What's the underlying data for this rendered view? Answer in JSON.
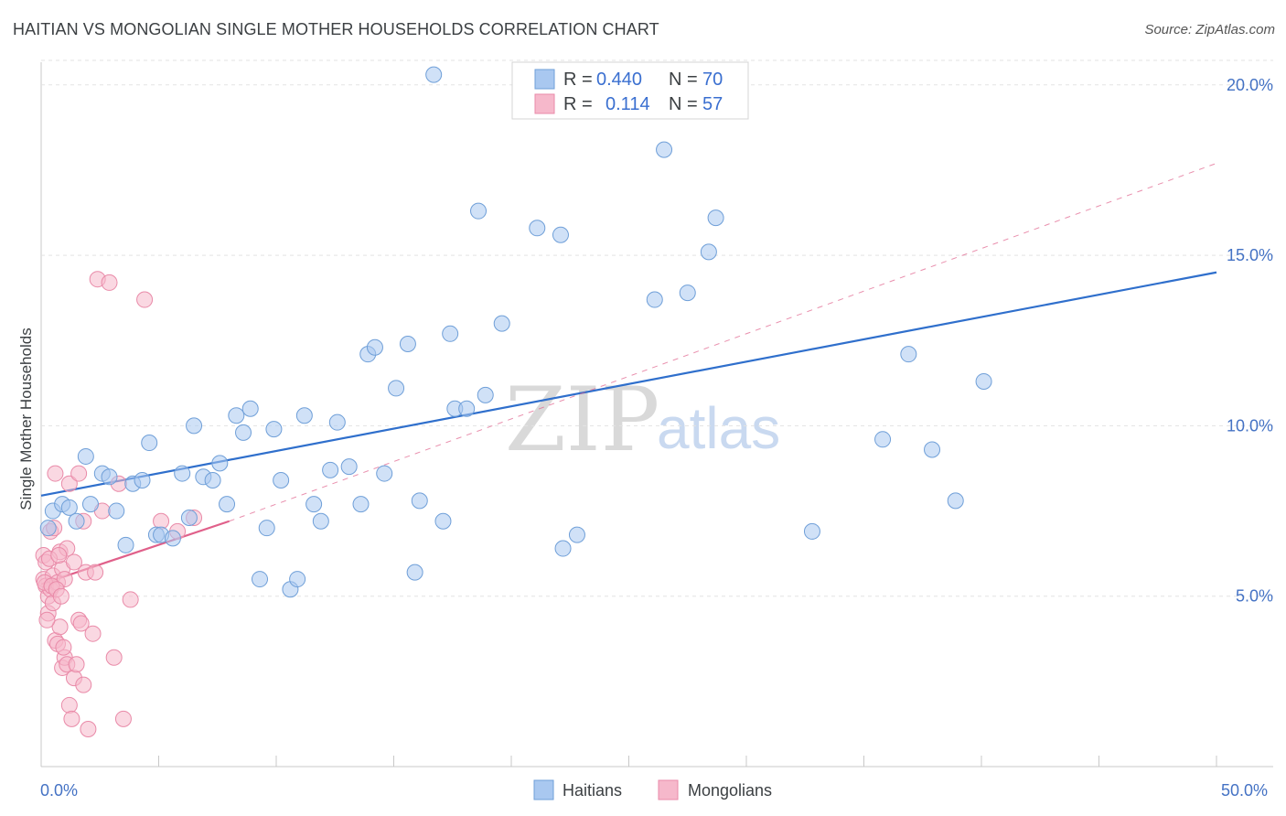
{
  "header": {
    "title": "HAITIAN VS MONGOLIAN SINGLE MOTHER HOUSEHOLDS CORRELATION CHART",
    "source": "Source: ZipAtlas.com"
  },
  "legend": {
    "rows": [
      {
        "r_label": "R =",
        "r_value": "0.440",
        "n_label": "N =",
        "n_value": "70",
        "color": "#a9c8f0"
      },
      {
        "r_label": "R =",
        "r_value": "0.114",
        "n_label": "N =",
        "n_value": "57",
        "color": "#f6b8cb"
      }
    ]
  },
  "bottom_legend": {
    "haitians": "Haitians",
    "mongolians": "Mongolians"
  },
  "watermark": {
    "zip": "ZIP",
    "atlas": "atlas"
  },
  "colors": {
    "blue_fill": "#a9c8f0",
    "blue_stroke": "#6f9fd8",
    "blue_line": "#2f6fcc",
    "pink_fill": "#f6b8cb",
    "pink_stroke": "#e98aa8",
    "pink_line": "#e0608a"
  },
  "chart_data": {
    "type": "scatter",
    "title": "HAITIAN VS MONGOLIAN SINGLE MOTHER HOUSEHOLDS CORRELATION CHART",
    "xlabel": "",
    "ylabel": "Single Mother Households",
    "xlim": [
      0,
      50
    ],
    "ylim": [
      0,
      20.8
    ],
    "x_tick_labels": [
      "0.0%",
      "50.0%"
    ],
    "y_ticks": [
      5,
      10,
      15,
      20
    ],
    "y_tick_labels": [
      "5.0%",
      "10.0%",
      "15.0%",
      "20.0%"
    ],
    "series": [
      {
        "name": "Haitians",
        "color": "#a9c8f0",
        "points": [
          [
            0.3,
            7.0
          ],
          [
            0.5,
            7.5
          ],
          [
            0.9,
            7.7
          ],
          [
            1.2,
            7.6
          ],
          [
            1.5,
            7.2
          ],
          [
            1.9,
            9.1
          ],
          [
            2.1,
            7.7
          ],
          [
            2.6,
            8.6
          ],
          [
            2.9,
            8.5
          ],
          [
            3.2,
            7.5
          ],
          [
            3.6,
            6.5
          ],
          [
            3.9,
            8.3
          ],
          [
            4.3,
            8.4
          ],
          [
            4.6,
            9.5
          ],
          [
            4.9,
            6.8
          ],
          [
            5.1,
            6.8
          ],
          [
            5.6,
            6.7
          ],
          [
            6.0,
            8.6
          ],
          [
            6.3,
            7.3
          ],
          [
            6.5,
            10.0
          ],
          [
            6.9,
            8.5
          ],
          [
            7.3,
            8.4
          ],
          [
            7.6,
            8.9
          ],
          [
            7.9,
            7.7
          ],
          [
            8.3,
            10.3
          ],
          [
            8.6,
            9.8
          ],
          [
            8.9,
            10.5
          ],
          [
            9.3,
            5.5
          ],
          [
            9.6,
            7.0
          ],
          [
            9.9,
            9.9
          ],
          [
            10.2,
            8.4
          ],
          [
            10.6,
            5.2
          ],
          [
            10.9,
            5.5
          ],
          [
            11.2,
            10.3
          ],
          [
            11.6,
            7.7
          ],
          [
            11.9,
            7.2
          ],
          [
            12.3,
            8.7
          ],
          [
            12.6,
            10.1
          ],
          [
            13.1,
            8.8
          ],
          [
            13.6,
            7.7
          ],
          [
            13.9,
            12.1
          ],
          [
            14.2,
            12.3
          ],
          [
            14.6,
            8.6
          ],
          [
            15.1,
            11.1
          ],
          [
            15.6,
            12.4
          ],
          [
            15.9,
            5.7
          ],
          [
            16.1,
            7.8
          ],
          [
            16.7,
            20.3
          ],
          [
            17.1,
            7.2
          ],
          [
            17.4,
            12.7
          ],
          [
            17.6,
            10.5
          ],
          [
            18.1,
            10.5
          ],
          [
            18.9,
            10.9
          ],
          [
            18.6,
            16.3
          ],
          [
            19.6,
            13.0
          ],
          [
            21.1,
            15.8
          ],
          [
            22.1,
            15.6
          ],
          [
            22.2,
            6.4
          ],
          [
            22.8,
            6.8
          ],
          [
            26.1,
            13.7
          ],
          [
            26.5,
            18.1
          ],
          [
            27.5,
            13.9
          ],
          [
            28.4,
            15.1
          ],
          [
            28.7,
            16.1
          ],
          [
            32.8,
            6.9
          ],
          [
            35.8,
            9.6
          ],
          [
            36.9,
            12.1
          ],
          [
            37.9,
            9.3
          ],
          [
            38.9,
            7.8
          ],
          [
            40.1,
            11.3
          ]
        ]
      },
      {
        "name": "Mongolians",
        "color": "#f6b8cb",
        "points": [
          [
            0.1,
            5.5
          ],
          [
            0.1,
            6.2
          ],
          [
            0.2,
            5.3
          ],
          [
            0.2,
            6.0
          ],
          [
            0.3,
            5.0
          ],
          [
            0.3,
            4.5
          ],
          [
            0.4,
            5.2
          ],
          [
            0.4,
            6.9
          ],
          [
            0.5,
            4.8
          ],
          [
            0.5,
            5.6
          ],
          [
            0.6,
            8.6
          ],
          [
            0.6,
            3.7
          ],
          [
            0.7,
            3.6
          ],
          [
            0.7,
            5.4
          ],
          [
            0.8,
            6.3
          ],
          [
            0.8,
            4.1
          ],
          [
            0.9,
            5.8
          ],
          [
            0.9,
            2.9
          ],
          [
            1.0,
            5.5
          ],
          [
            1.0,
            3.2
          ],
          [
            1.1,
            6.4
          ],
          [
            1.1,
            3.0
          ],
          [
            1.2,
            8.3
          ],
          [
            1.2,
            1.8
          ],
          [
            1.3,
            1.4
          ],
          [
            1.4,
            6.0
          ],
          [
            1.4,
            2.6
          ],
          [
            1.5,
            3.0
          ],
          [
            1.6,
            4.3
          ],
          [
            1.6,
            8.6
          ],
          [
            1.7,
            4.2
          ],
          [
            1.8,
            7.2
          ],
          [
            1.8,
            2.4
          ],
          [
            1.9,
            5.7
          ],
          [
            2.0,
            1.1
          ],
          [
            2.2,
            3.9
          ],
          [
            2.3,
            5.7
          ],
          [
            2.4,
            14.3
          ],
          [
            2.6,
            7.5
          ],
          [
            2.9,
            14.2
          ],
          [
            3.1,
            3.2
          ],
          [
            3.3,
            8.3
          ],
          [
            3.5,
            1.4
          ],
          [
            3.8,
            4.9
          ],
          [
            4.4,
            13.7
          ],
          [
            5.1,
            7.2
          ],
          [
            5.8,
            6.9
          ],
          [
            6.5,
            7.3
          ],
          [
            0.15,
            5.4
          ],
          [
            0.25,
            4.3
          ],
          [
            0.35,
            6.1
          ],
          [
            0.45,
            5.3
          ],
          [
            0.55,
            7.0
          ],
          [
            0.65,
            5.2
          ],
          [
            0.75,
            6.2
          ],
          [
            0.85,
            5.0
          ],
          [
            0.95,
            3.5
          ]
        ]
      }
    ],
    "trend_lines": [
      {
        "series": "Haitians",
        "style": "solid",
        "x": [
          0,
          50
        ],
        "y": [
          7.95,
          14.5
        ]
      },
      {
        "series": "Mongolians",
        "style": "solid",
        "x": [
          0,
          8
        ],
        "y": [
          5.35,
          7.2
        ]
      },
      {
        "series": "Mongolians",
        "style": "dashed",
        "x": [
          8,
          50
        ],
        "y": [
          7.2,
          17.7
        ]
      }
    ]
  }
}
